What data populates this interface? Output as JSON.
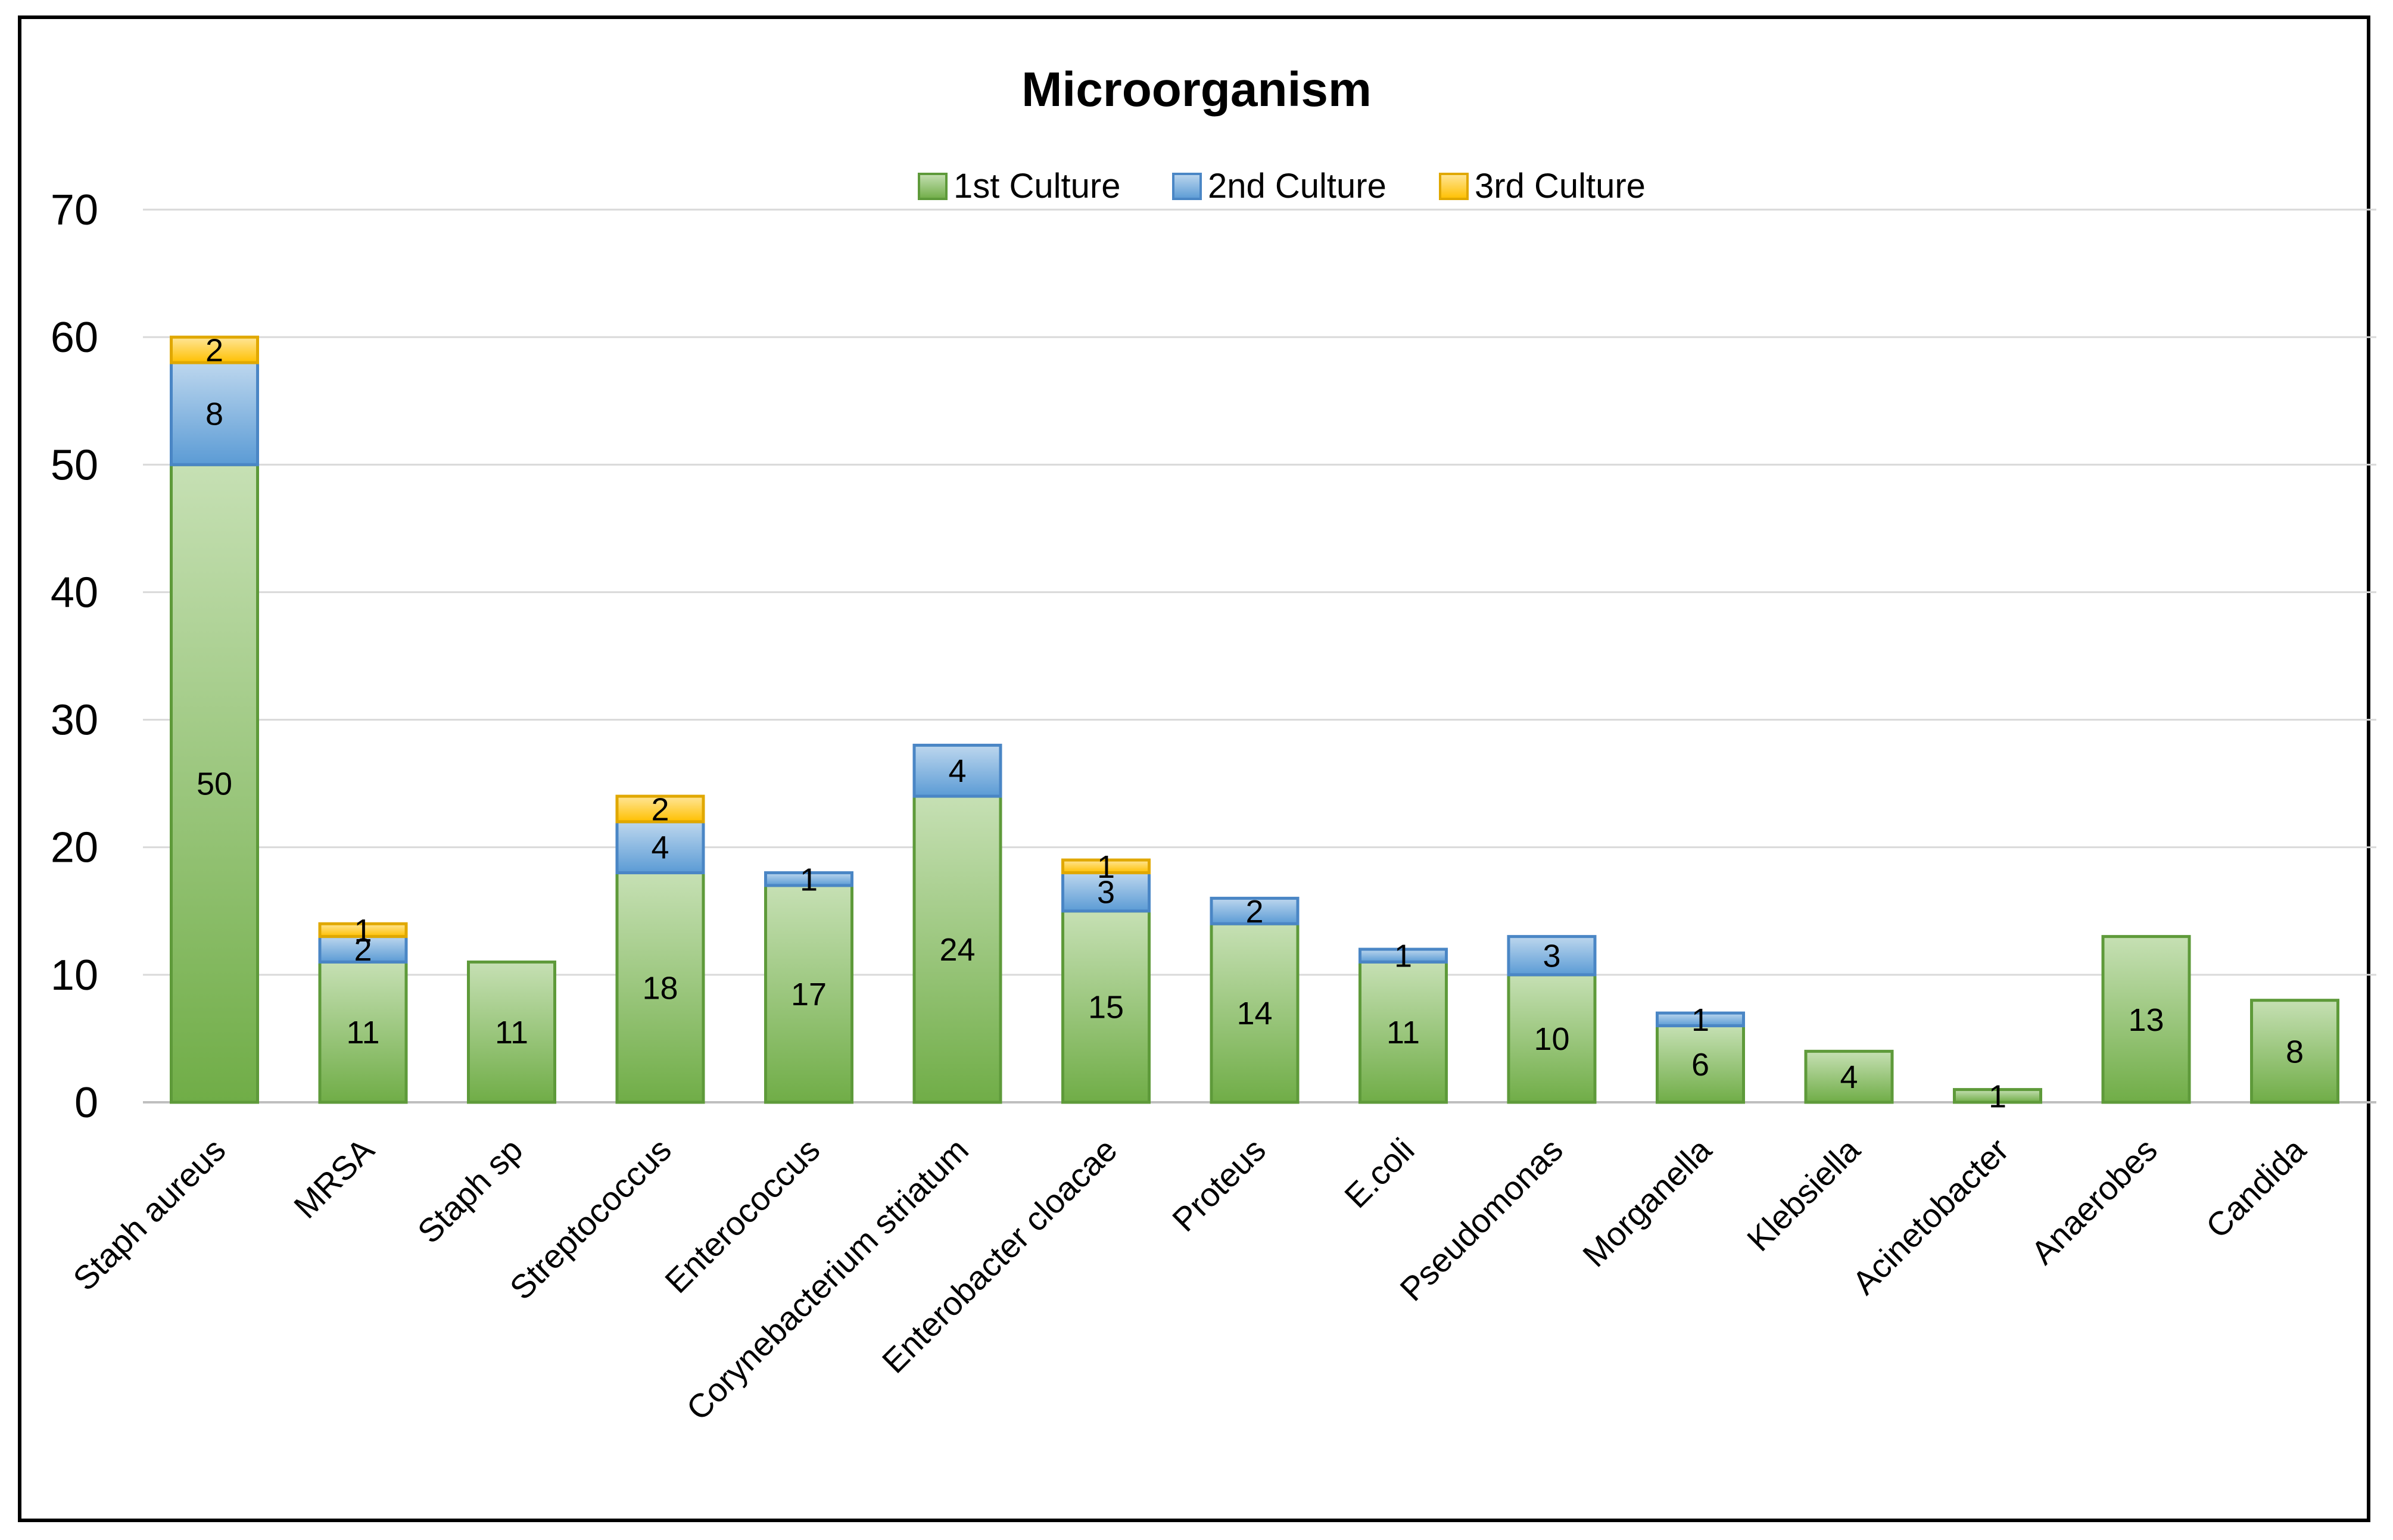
{
  "chart_data": {
    "type": "bar",
    "stacked": true,
    "title": "Microorganism",
    "xlabel": "",
    "ylabel": "",
    "ylim": [
      0,
      70
    ],
    "yticks": [
      0,
      10,
      20,
      30,
      40,
      50,
      60,
      70
    ],
    "ytick_labels": [
      "0",
      "10",
      "20",
      "30",
      "40",
      "50",
      "60",
      "70"
    ],
    "grid": true,
    "legend_position": "top-center",
    "categories": [
      "Staph aureus",
      "MRSA",
      "Staph sp",
      "Streptococcus",
      "Enterococcus",
      "Corynebacterium striatum",
      "Enterobacter cloacae",
      "Proteus",
      "E.coli",
      "Pseudomonas",
      "Morganella",
      "Klebsiella",
      "Acinetobacter",
      "Anaerobes",
      "Candida"
    ],
    "series": [
      {
        "name": "1st Culture",
        "color": "#70ad47",
        "color_light": "#c6e0b4",
        "border": "#5e9a3a",
        "values": [
          50,
          11,
          11,
          18,
          17,
          24,
          15,
          14,
          11,
          10,
          6,
          4,
          1,
          13,
          8
        ],
        "labels": [
          "50",
          "11",
          "11",
          "18",
          "17",
          "24",
          "15",
          "14",
          "11",
          "10",
          "6",
          "4",
          "1",
          "13",
          "8"
        ]
      },
      {
        "name": "2nd Culture",
        "color": "#5b9bd5",
        "color_light": "#bdd7ee",
        "border": "#4a86c5",
        "values": [
          8,
          2,
          0,
          4,
          1,
          4,
          3,
          2,
          1,
          3,
          1,
          0,
          0,
          0,
          0
        ],
        "labels": [
          "8",
          "2",
          "",
          "4",
          "1",
          "4",
          "3",
          "2",
          "1",
          "3",
          "1",
          "",
          "",
          "",
          ""
        ]
      },
      {
        "name": "3rd Culture",
        "color": "#ffc000",
        "color_light": "#ffe699",
        "border": "#e0a800",
        "values": [
          2,
          1,
          0,
          2,
          0,
          0,
          1,
          0,
          0,
          0,
          0,
          0,
          0,
          0,
          0
        ],
        "labels": [
          "2",
          "1",
          "",
          "2",
          "",
          "",
          "1",
          "",
          "",
          "",
          "",
          "",
          "",
          "",
          ""
        ]
      }
    ]
  }
}
